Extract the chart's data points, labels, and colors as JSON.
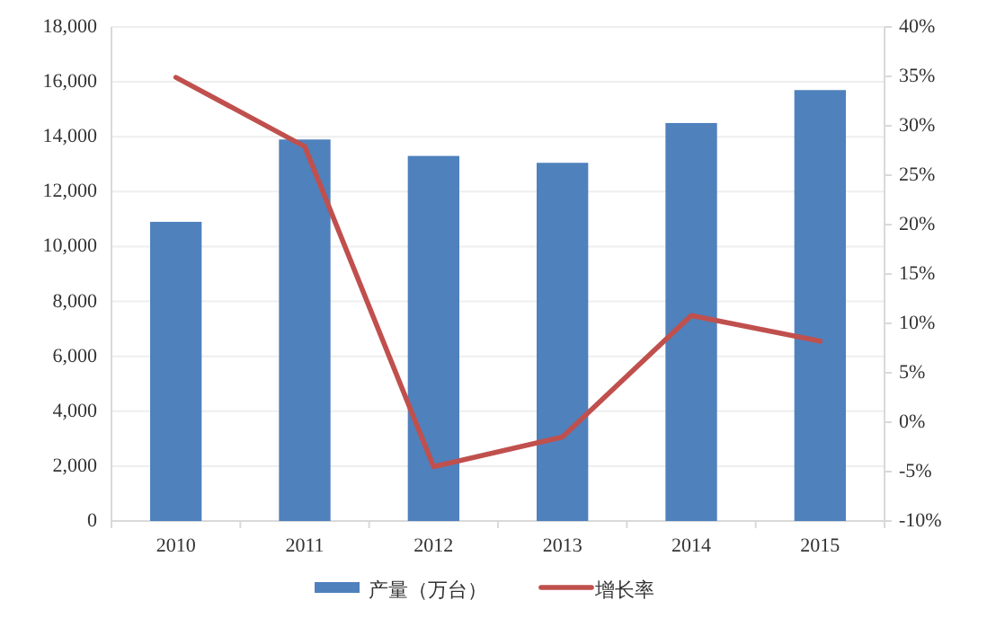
{
  "chart_data": {
    "type": "bar",
    "categories": [
      "2010",
      "2011",
      "2012",
      "2013",
      "2014",
      "2015"
    ],
    "series": [
      {
        "name": "产量（万台）",
        "color": "#4f81bd",
        "values": [
          10900,
          13900,
          13300,
          13050,
          14500,
          15700
        ]
      },
      {
        "name": "增长率",
        "type": "line",
        "axis": "y2",
        "color": "#c0504d",
        "values": [
          34.9,
          27.9,
          -4.5,
          -1.5,
          10.8,
          8.2
        ]
      }
    ],
    "ylim": [
      0,
      18000
    ],
    "yticks": [
      {
        "value": 0,
        "label": "0"
      },
      {
        "value": 2000,
        "label": "2,000"
      },
      {
        "value": 4000,
        "label": "4,000"
      },
      {
        "value": 6000,
        "label": "6,000"
      },
      {
        "value": 8000,
        "label": "8,000"
      },
      {
        "value": 10000,
        "label": "10,000"
      },
      {
        "value": 12000,
        "label": "12,000"
      },
      {
        "value": 14000,
        "label": "14,000"
      },
      {
        "value": 16000,
        "label": "16,000"
      },
      {
        "value": 18000,
        "label": "18,000"
      }
    ],
    "y2lim": [
      -10,
      40
    ],
    "y2ticks": [
      {
        "value": -10,
        "label": "-10%"
      },
      {
        "value": -5,
        "label": "-5%"
      },
      {
        "value": 0,
        "label": "0%"
      },
      {
        "value": 5,
        "label": "5%"
      },
      {
        "value": 10,
        "label": "10%"
      },
      {
        "value": 15,
        "label": "15%"
      },
      {
        "value": 20,
        "label": "20%"
      },
      {
        "value": 25,
        "label": "25%"
      },
      {
        "value": 30,
        "label": "30%"
      },
      {
        "value": 35,
        "label": "35%"
      },
      {
        "value": 40,
        "label": "40%"
      }
    ],
    "grid": "y",
    "legend": "bottom",
    "marker": "none",
    "line_style": "solid"
  }
}
